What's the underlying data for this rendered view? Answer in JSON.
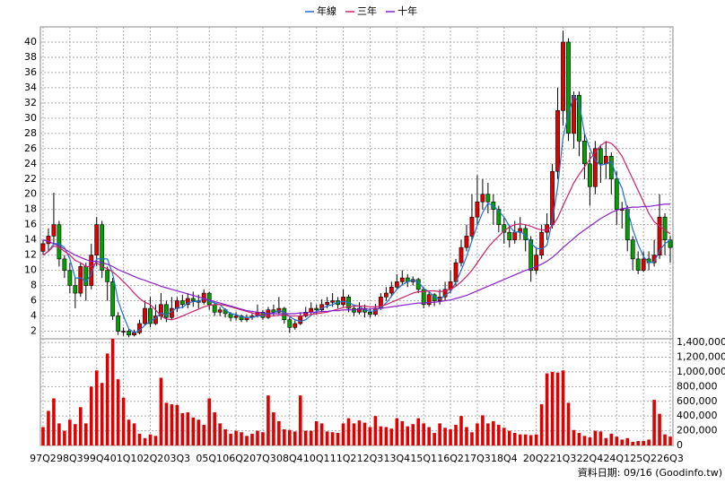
{
  "chart_data": [
    {
      "type": "candlestick",
      "up_color": "#e00000",
      "down_color": "#00a000",
      "grid": true,
      "legend": "top",
      "categories": [
        "97Q2",
        null,
        null,
        null,
        null,
        "98Q3",
        null,
        null,
        null,
        null,
        "99Q4",
        null,
        null,
        null,
        null,
        "01Q1",
        null,
        null,
        null,
        null,
        "02Q2",
        null,
        null,
        null,
        null,
        "03Q3",
        null,
        null,
        null,
        null,
        null,
        "05Q1",
        null,
        null,
        null,
        null,
        "06Q2",
        null,
        null,
        null,
        null,
        "07Q3",
        null,
        null,
        null,
        null,
        "08Q4",
        null,
        null,
        null,
        null,
        "10Q1",
        null,
        null,
        null,
        null,
        "11Q2",
        null,
        null,
        null,
        null,
        "12Q3",
        null,
        null,
        null,
        null,
        "13Q4",
        null,
        null,
        null,
        null,
        "15Q1",
        null,
        null,
        null,
        null,
        "16Q2",
        null,
        null,
        null,
        null,
        "17Q3",
        null,
        null,
        null,
        null,
        "18Q4",
        null,
        null,
        null,
        null,
        null,
        "20Q2",
        null,
        null,
        null,
        null,
        "21Q3",
        null,
        null,
        null,
        null,
        "22Q4",
        null,
        null,
        null,
        null,
        "24Q1",
        null,
        null,
        null,
        null,
        "25Q2",
        null,
        null,
        null,
        null,
        "26Q3"
      ],
      "open": [
        12.5,
        13.5,
        14.5,
        16,
        11.5,
        10,
        8,
        7,
        10.5,
        8,
        12,
        16,
        10,
        8.5,
        4,
        2,
        2,
        1.5,
        1.8,
        3,
        5,
        3,
        4,
        5.5,
        3.8,
        5,
        6,
        5.5,
        6.3,
        6,
        5.8,
        7,
        5.5,
        4.5,
        4.8,
        4.3,
        3.8,
        4,
        3.5,
        3.8,
        4,
        4.5,
        3.8,
        4.8,
        4.5,
        5,
        3.5,
        2.5,
        3,
        4,
        4.5,
        5,
        4.8,
        5.5,
        5.8,
        6,
        5.5,
        6.5,
        5,
        4.5,
        5,
        4.5,
        4.2,
        5,
        6.5,
        7,
        7.8,
        8.5,
        9,
        8.5,
        8.8,
        7.5,
        5.5,
        6.8,
        6,
        6.5,
        7.5,
        8.5,
        11,
        13,
        14.5,
        17,
        19,
        20,
        19,
        18,
        16,
        15,
        14,
        15,
        15.5,
        14,
        10,
        12,
        15,
        16,
        23,
        31,
        40,
        28,
        33,
        27,
        24,
        21,
        26,
        24,
        25,
        22,
        18,
        18,
        14,
        11.5,
        10,
        11.5,
        11,
        12,
        17,
        14
      ],
      "high": [
        14,
        15.5,
        20.2,
        16.5,
        12,
        11,
        9,
        11,
        11,
        13.5,
        17,
        16.5,
        10.5,
        9,
        4.5,
        2.5,
        2.3,
        2.2,
        3.5,
        6,
        6.5,
        5.5,
        7,
        6,
        6.5,
        6.5,
        6.8,
        7,
        7.2,
        6.8,
        7.5,
        7.2,
        5.8,
        5.2,
        5,
        4.5,
        4.5,
        4.2,
        4.2,
        4.5,
        5.5,
        4.8,
        5.2,
        5.5,
        6.5,
        5.2,
        3.8,
        3.6,
        4.5,
        5.2,
        5.8,
        5.5,
        6.2,
        6.5,
        7,
        6.5,
        7.5,
        6.8,
        5.5,
        5.8,
        5.5,
        5,
        5.6,
        7,
        7.8,
        8.5,
        9.5,
        10,
        9.5,
        9.2,
        9,
        7.8,
        7.2,
        7,
        7.5,
        8.5,
        10,
        11.5,
        14,
        16,
        20,
        22.5,
        22,
        21.5,
        20,
        18.5,
        17,
        16,
        16.5,
        17,
        16,
        14.5,
        13,
        16,
        17.5,
        24,
        34,
        41.5,
        40.5,
        33.5,
        33.5,
        28,
        25.5,
        27,
        26.5,
        27,
        25.5,
        23,
        19,
        18.5,
        14.5,
        12.5,
        12.5,
        12.5,
        14,
        20,
        17.5,
        14.5
      ],
      "low": [
        12,
        12.5,
        13.5,
        10.5,
        9,
        7,
        5,
        6.5,
        6,
        7.5,
        10.5,
        9,
        6,
        3.5,
        1.5,
        1.4,
        1.2,
        1.3,
        1.6,
        2.8,
        2.5,
        2.8,
        3.5,
        3.2,
        3.5,
        4.5,
        5,
        5,
        5.2,
        5,
        5.5,
        4.8,
        4,
        4,
        3.8,
        3.3,
        3.4,
        3.2,
        3.2,
        3.5,
        3.8,
        3.5,
        3.6,
        4,
        4.2,
        3,
        1.8,
        2.2,
        2.8,
        3.8,
        4.2,
        4.2,
        4.5,
        5,
        5.2,
        5,
        5.2,
        4.5,
        4,
        4.2,
        3.8,
        3.8,
        4,
        4.8,
        6,
        6.5,
        7.5,
        8,
        7.8,
        8,
        7,
        5,
        5.2,
        5.3,
        5.5,
        6,
        7,
        8,
        10.5,
        12.5,
        14,
        16,
        18,
        17.5,
        16,
        15,
        13.5,
        13,
        13.5,
        14,
        12.5,
        8.5,
        9.5,
        11.5,
        14,
        15.5,
        22,
        29,
        27,
        26,
        25,
        22,
        18.5,
        20,
        21.5,
        22,
        20,
        16,
        15.5,
        12.5,
        10,
        9.5,
        9.8,
        10,
        10.5,
        11.5,
        12,
        11
      ],
      "close": [
        13.5,
        14.5,
        16,
        11.5,
        10,
        8,
        7,
        10.5,
        8,
        12,
        16,
        10,
        8.5,
        4,
        2,
        2,
        1.5,
        1.8,
        3,
        5,
        3,
        4,
        5.5,
        3.8,
        5,
        6,
        5.5,
        6.3,
        6,
        5.8,
        7,
        5.5,
        4.5,
        4.8,
        4.3,
        3.8,
        4,
        3.5,
        3.8,
        4,
        4.5,
        3.8,
        4.8,
        4.5,
        5,
        3.5,
        2.5,
        3,
        4,
        4.5,
        5,
        4.8,
        5.5,
        5.8,
        6,
        5.5,
        6.5,
        5,
        4.5,
        5,
        4.5,
        4.2,
        5,
        6.5,
        7,
        7.8,
        8.5,
        9,
        8.5,
        8.8,
        7.5,
        5.5,
        6.8,
        6,
        6.5,
        7.5,
        8.5,
        11,
        13,
        14.5,
        17,
        19,
        20,
        19,
        18,
        16,
        15,
        14,
        15,
        15.5,
        14,
        10,
        12,
        15,
        16,
        23,
        31,
        40,
        28,
        33,
        27,
        24,
        21,
        26,
        24,
        25,
        22,
        18,
        18,
        14,
        11.5,
        10,
        11.5,
        11,
        12,
        17,
        14,
        13
      ],
      "series": [
        {
          "name": "年線",
          "color": "#1f6fd0",
          "values": [
            12,
            12.5,
            13.5,
            13.5,
            13,
            11.5,
            9,
            9,
            8.5,
            9.5,
            11.5,
            11.5,
            11.5,
            9.5,
            6,
            4,
            2.3,
            1.8,
            2.1,
            2.8,
            3.3,
            3.7,
            4.4,
            4.1,
            4.6,
            5.1,
            5.1,
            5.7,
            5.9,
            5.9,
            6.3,
            6,
            5.7,
            5.5,
            4.8,
            4.3,
            4.2,
            3.9,
            3.8,
            3.8,
            4,
            4,
            4.3,
            4.4,
            4.7,
            4.5,
            3.9,
            3.5,
            3.3,
            3.5,
            4.1,
            4.6,
            5,
            5.3,
            5.5,
            5.8,
            5.9,
            5.8,
            5.4,
            5.3,
            4.8,
            4.6,
            4.7,
            5.1,
            5.7,
            6.6,
            7.5,
            8.1,
            8.5,
            8.7,
            8.5,
            7.6,
            7.2,
            6.5,
            6.2,
            6.7,
            7.2,
            8.4,
            10,
            11.8,
            13.9,
            15.9,
            17.6,
            18.8,
            18.5,
            17.8,
            17,
            15.8,
            15,
            15.1,
            14.6,
            13.6,
            12.9,
            12.8,
            13.3,
            16.5,
            21,
            27.5,
            30.5,
            33,
            32,
            28,
            26,
            24.5,
            23.8,
            24,
            24.3,
            22.3,
            20.8,
            18,
            15.4,
            13.4,
            11.8,
            11,
            11.1,
            12.6,
            13.5,
            14
          ]
        },
        {
          "name": "三年",
          "color": "#d0206a",
          "values": [
            12,
            12.5,
            13.2,
            13,
            12.5,
            12,
            11.3,
            11,
            10.5,
            10.5,
            11,
            10.5,
            10.2,
            9.8,
            9.2,
            8.5,
            7.8,
            7,
            6.3,
            5.8,
            5.5,
            4.8,
            4,
            3.6,
            3.5,
            3.7,
            4,
            4.3,
            4.6,
            4.9,
            5.2,
            5.4,
            5.5,
            5.5,
            5.4,
            5.2,
            5,
            4.8,
            4.6,
            4.4,
            4.2,
            4.1,
            4,
            4,
            4.1,
            4.1,
            4,
            4,
            4,
            4.1,
            4.2,
            4.3,
            4.4,
            4.5,
            4.7,
            4.9,
            5.1,
            5.2,
            5.3,
            5.3,
            5.3,
            5.2,
            5.2,
            5.3,
            5.5,
            5.8,
            6.1,
            6.4,
            6.7,
            7,
            7.2,
            7.2,
            7.3,
            7.3,
            7.2,
            7.3,
            7.5,
            7.9,
            8.5,
            9.2,
            10,
            11,
            12,
            13,
            13.8,
            14.5,
            15.2,
            15.7,
            16,
            16.1,
            16,
            15.8,
            15.5,
            15.3,
            15.3,
            15.8,
            16.9,
            18.5,
            20,
            21.5,
            22.6,
            23.6,
            24.6,
            25.5,
            26.4,
            26.9,
            26.7,
            26,
            25,
            23.5,
            22,
            20.5,
            19,
            17.5,
            16.4,
            15.8,
            15.3,
            14.8
          ]
        },
        {
          "name": "十年",
          "color": "#8a1fc8",
          "values": [
            14,
            13.8,
            13.5,
            13.2,
            12.8,
            12.4,
            12,
            11.7,
            11.4,
            11.2,
            11.2,
            11,
            10.8,
            10.5,
            10.1,
            9.8,
            9.5,
            9.2,
            8.9,
            8.7,
            8.4,
            8.2,
            7.9,
            7.7,
            7.5,
            7.3,
            7.1,
            6.9,
            6.7,
            6.5,
            6.3,
            6.1,
            5.9,
            5.7,
            5.5,
            5.3,
            5.1,
            4.9,
            4.7,
            4.6,
            4.5,
            4.4,
            4.3,
            4.3,
            4.3,
            4.3,
            4.3,
            4.3,
            4.4,
            4.4,
            4.5,
            4.5,
            4.6,
            4.6,
            4.7,
            4.7,
            4.8,
            4.8,
            4.8,
            4.9,
            4.9,
            4.9,
            5,
            5,
            5.1,
            5.2,
            5.3,
            5.4,
            5.5,
            5.6,
            5.7,
            5.7,
            5.8,
            5.8,
            5.9,
            6,
            6.1,
            6.3,
            6.5,
            6.7,
            7,
            7.3,
            7.6,
            7.9,
            8.2,
            8.5,
            8.8,
            9.1,
            9.4,
            9.7,
            10,
            10.2,
            10.5,
            10.8,
            11.2,
            11.7,
            12.3,
            13,
            13.6,
            14.2,
            14.8,
            15.3,
            15.8,
            16.3,
            16.8,
            17.2,
            17.6,
            17.9,
            18.1,
            18.2,
            18.3,
            18.3,
            18.4,
            18.4,
            18.5,
            18.6,
            18.7,
            18.7
          ]
        }
      ],
      "ylim": [
        1,
        42
      ],
      "yticks": [
        2,
        4,
        6,
        8,
        10,
        12,
        14,
        16,
        18,
        20,
        22,
        24,
        26,
        28,
        30,
        32,
        34,
        36,
        38,
        40
      ]
    },
    {
      "type": "bar",
      "color": "#e00000",
      "grid": true,
      "values": [
        250000,
        470000,
        640000,
        300000,
        200000,
        350000,
        290000,
        520000,
        300000,
        800000,
        1020000,
        850000,
        1250000,
        1450000,
        900000,
        650000,
        350000,
        300000,
        160000,
        100000,
        150000,
        130000,
        920000,
        580000,
        560000,
        550000,
        440000,
        450000,
        380000,
        350000,
        280000,
        640000,
        450000,
        300000,
        220000,
        160000,
        200000,
        180000,
        130000,
        160000,
        200000,
        180000,
        680000,
        450000,
        330000,
        220000,
        210000,
        190000,
        680000,
        200000,
        200000,
        330000,
        300000,
        190000,
        180000,
        170000,
        300000,
        370000,
        300000,
        340000,
        310000,
        250000,
        400000,
        260000,
        250000,
        230000,
        370000,
        330000,
        260000,
        290000,
        370000,
        300000,
        250000,
        170000,
        300000,
        240000,
        220000,
        280000,
        400000,
        250000,
        180000,
        300000,
        410000,
        300000,
        330000,
        280000,
        240000,
        200000,
        170000,
        150000,
        150000,
        140000,
        150000,
        560000,
        980000,
        1000000,
        990000,
        1020000,
        580000,
        210000,
        170000,
        130000,
        110000,
        200000,
        190000,
        100000,
        160000,
        120000,
        80000,
        100000,
        50000,
        60000,
        60000,
        80000,
        620000,
        430000,
        150000,
        120000
      ],
      "ylim": [
        0,
        1450000
      ],
      "yticks": [
        0,
        {
          "value": 200000,
          "label": "200,000"
        },
        {
          "value": 400000,
          "label": "400,000"
        },
        {
          "value": 600000,
          "label": "600,000"
        },
        {
          "value": 800000,
          "label": "800,000"
        },
        {
          "value": 1000000,
          "label": "1,000,000"
        },
        {
          "value": 1200000,
          "label": "1,200,000"
        },
        {
          "value": 1400000,
          "label": "1,400,000"
        }
      ]
    }
  ],
  "source": "資料日期: 09/16 (Goodinfo.tw)"
}
